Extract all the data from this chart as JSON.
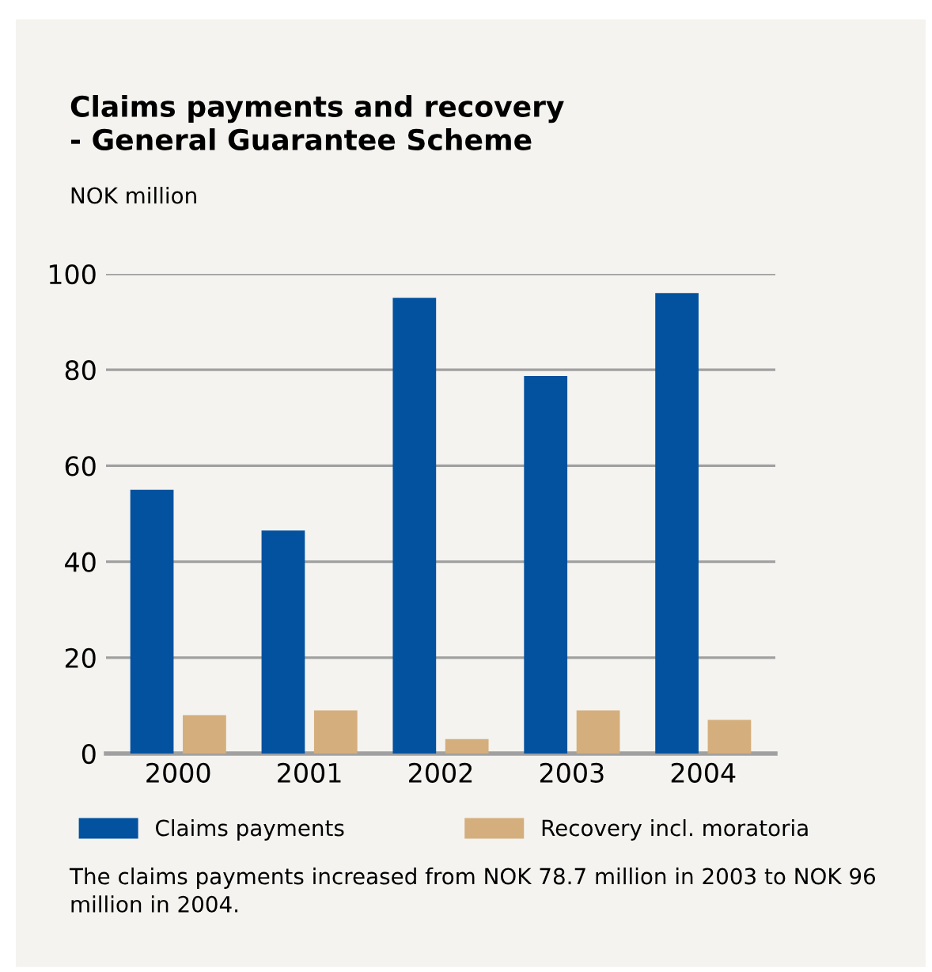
{
  "chart_data": {
    "type": "bar",
    "title": "Claims payments and recovery\n- General Guarantee Scheme",
    "ylabel": "NOK million",
    "categories": [
      "2000",
      "2001",
      "2002",
      "2003",
      "2004"
    ],
    "series": [
      {
        "name": "Claims payments",
        "color": "#02529f",
        "values": [
          55,
          46.5,
          95,
          78.7,
          96
        ]
      },
      {
        "name": "Recovery incl. moratoria",
        "color": "#d4ae7c",
        "values": [
          8,
          9,
          3,
          9,
          7
        ]
      }
    ],
    "ylim": [
      0,
      100
    ],
    "yticks": [
      0,
      20,
      40,
      60,
      80,
      100
    ],
    "grid": "y",
    "legend": "bottom",
    "annotations": [
      "The claims payments increased from NOK 78.7 million in 2003 to NOK 96 million in 2004."
    ]
  }
}
